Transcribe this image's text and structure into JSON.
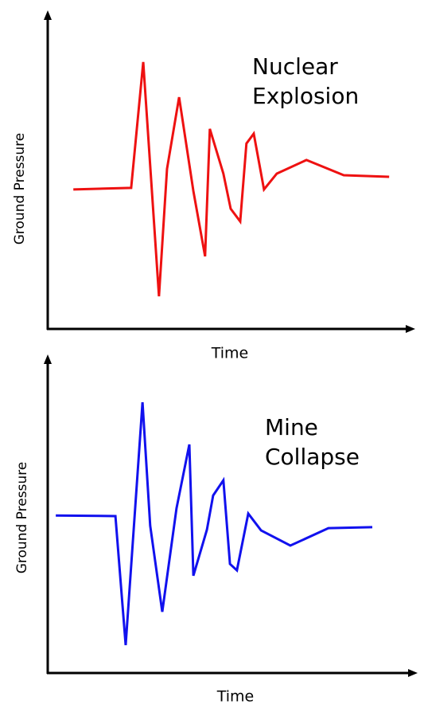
{
  "chart_data": [
    {
      "type": "line",
      "annotation": [
        "Nuclear",
        "Explosion"
      ],
      "x_label": "Time",
      "y_label": "Ground Pressure",
      "xlim": [
        0,
        100
      ],
      "ylim": [
        0,
        100
      ],
      "x": [
        7,
        22.8,
        26.1,
        30.4,
        32.6,
        35.9,
        39.8,
        43,
        44.3,
        48,
        50,
        52.6,
        54.3,
        56.3,
        59.1,
        62.6,
        70.7,
        80.9,
        93.3
      ],
      "series": [
        {
          "color": "#ee1111",
          "values": [
            44,
            44.5,
            84.2,
            10.3,
            50.5,
            73.1,
            43.5,
            22.9,
            63.1,
            49,
            37.9,
            33.9,
            58.5,
            61.6,
            44,
            49,
            53.3,
            48.5,
            48
          ]
        }
      ]
    },
    {
      "type": "line",
      "annotation": [
        "Mine",
        "Collapse"
      ],
      "x_label": "Time",
      "y_label": "Ground Pressure",
      "xlim": [
        0,
        100
      ],
      "ylim": [
        0,
        100
      ],
      "x": [
        2.2,
        18.5,
        21.3,
        25.9,
        28,
        31.3,
        35.2,
        38.7,
        39.8,
        43.5,
        45.2,
        48,
        49.8,
        51.7,
        54.8,
        58.3,
        66.3,
        76.7,
        88.7
      ],
      "series": [
        {
          "color": "#1111ee",
          "values": [
            49.7,
            49.5,
            8.8,
            85.4,
            46.5,
            19.3,
            52,
            72.1,
            30.7,
            45.2,
            56,
            60.8,
            34.4,
            32.4,
            50.3,
            45,
            40.2,
            45.7,
            46
          ]
        }
      ]
    }
  ]
}
